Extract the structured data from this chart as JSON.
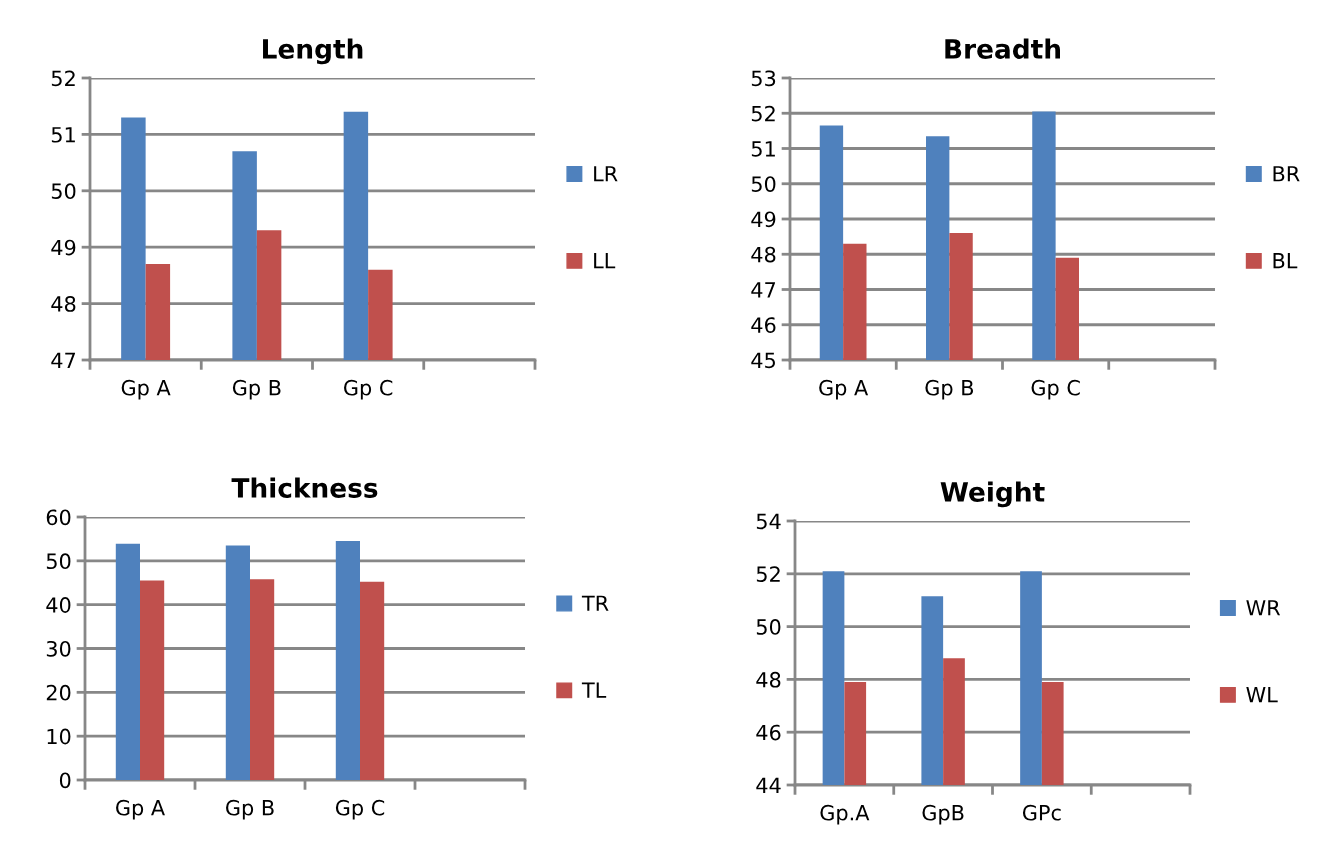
{
  "chart_data": [
    {
      "type": "bar",
      "title": "Length",
      "categories": [
        "Gp A",
        "Gp B",
        "Gp C",
        null
      ],
      "ylim": [
        47,
        52
      ],
      "yticks": [
        47,
        48,
        49,
        50,
        51,
        52
      ],
      "grid": "y",
      "legend": "right",
      "series": [
        {
          "name": "LR",
          "color": "#4f81bd",
          "values": [
            51.3,
            50.7,
            51.4,
            null
          ]
        },
        {
          "name": "LL",
          "color": "#c0504d",
          "values": [
            48.7,
            49.3,
            48.6,
            null
          ]
        }
      ]
    },
    {
      "type": "bar",
      "title": "Breadth",
      "categories": [
        "Gp A",
        "Gp B",
        "Gp C",
        null
      ],
      "ylim": [
        45,
        53
      ],
      "yticks": [
        45,
        46,
        47,
        48,
        49,
        50,
        51,
        52,
        53
      ],
      "grid": "y",
      "legend": "right",
      "series": [
        {
          "name": "BR",
          "color": "#4f81bd",
          "values": [
            51.65,
            51.35,
            52.05,
            null
          ]
        },
        {
          "name": "BL",
          "color": "#c0504d",
          "values": [
            48.3,
            48.6,
            47.9,
            null
          ]
        }
      ]
    },
    {
      "type": "bar",
      "title": "Thickness",
      "categories": [
        "Gp A",
        "Gp B",
        "Gp C",
        null
      ],
      "ylim": [
        0,
        60
      ],
      "yticks": [
        0,
        10,
        20,
        30,
        40,
        50,
        60
      ],
      "grid": "y",
      "legend": "right",
      "series": [
        {
          "name": "TR",
          "color": "#4f81bd",
          "values": [
            53.9,
            53.5,
            54.5,
            null
          ]
        },
        {
          "name": "TL",
          "color": "#c0504d",
          "values": [
            45.5,
            45.8,
            45.2,
            null
          ]
        }
      ]
    },
    {
      "type": "bar",
      "title": "Weight",
      "categories": [
        "Gp.A",
        "GpB",
        "GPc",
        null
      ],
      "ylim": [
        44,
        54
      ],
      "yticks": [
        44,
        46,
        48,
        50,
        52,
        54
      ],
      "grid": "y",
      "legend": "right",
      "series": [
        {
          "name": "WR",
          "color": "#4f81bd",
          "values": [
            52.1,
            51.15,
            52.1,
            null
          ]
        },
        {
          "name": "WL",
          "color": "#c0504d",
          "values": [
            47.9,
            48.8,
            47.9,
            null
          ]
        }
      ]
    }
  ]
}
